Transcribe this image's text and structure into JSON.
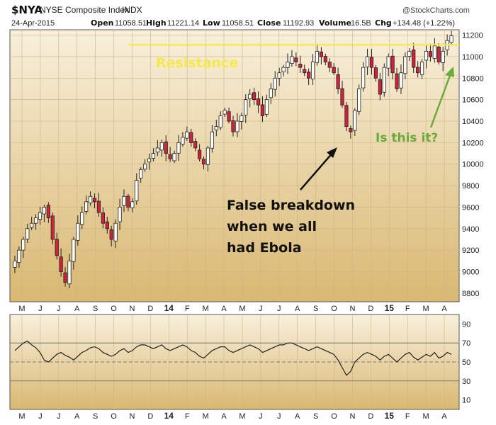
{
  "header": {
    "symbol": "$NYA",
    "name": "NYSE Composite Index",
    "exchange": "INDX",
    "date": "24-Apr-2015",
    "open_label": "Open",
    "open": "11058.51",
    "high_label": "High",
    "high": "11221.14",
    "low_label": "Low",
    "low": "11058.51",
    "close_label": "Close",
    "close": "11192.93",
    "volume_label": "Volume",
    "volume": "16.5B",
    "chg_label": "Chg",
    "chg": "+134.48 (+1.22%)",
    "watermark": "@StockCharts.com"
  },
  "annotations": {
    "resistance": "Resistance",
    "breakdown_line1": "False breakdown",
    "breakdown_line2": "when we all",
    "breakdown_line3": "had Ebola",
    "question": "Is this it?"
  },
  "colors": {
    "up": "#ffffff",
    "down": "#d4213a",
    "resistance": "#f5e94a",
    "question": "#6bab3a",
    "panel_top": "#f8f0dc",
    "panel_bottom": "#d9b871"
  },
  "chart_data": [
    {
      "type": "candlestick",
      "title": "$NYA NYSE Composite Index INDX",
      "y_ticks": [
        8800,
        9000,
        9200,
        9400,
        9600,
        9800,
        10000,
        10200,
        10400,
        10600,
        10800,
        11000,
        11200
      ],
      "ylim": [
        8720,
        11250
      ],
      "x_labels": [
        "M",
        "J",
        "J",
        "A",
        "S",
        "O",
        "N",
        "D",
        "14",
        "F",
        "M",
        "A",
        "M",
        "J",
        "J",
        "A",
        "S",
        "O",
        "N",
        "D",
        "15",
        "F",
        "M",
        "A"
      ],
      "resistance_level": 11110,
      "weekly_closes": [
        9100,
        9200,
        9300,
        9400,
        9450,
        9500,
        9550,
        9600,
        9500,
        9300,
        9150,
        9000,
        8900,
        9100,
        9300,
        9450,
        9550,
        9650,
        9700,
        9650,
        9550,
        9450,
        9400,
        9300,
        9450,
        9600,
        9700,
        9600,
        9650,
        9850,
        9950,
        10000,
        10050,
        10100,
        10150,
        10200,
        10100,
        10050,
        10100,
        10200,
        10250,
        10300,
        10200,
        10150,
        10050,
        10000,
        10150,
        10300,
        10350,
        10450,
        10500,
        10400,
        10300,
        10400,
        10450,
        10600,
        10650,
        10600,
        10550,
        10450,
        10600,
        10700,
        10800,
        10850,
        10900,
        10950,
        11000,
        10950,
        10900,
        10850,
        10800,
        10950,
        11050,
        11000,
        10950,
        10900,
        10850,
        10700,
        10550,
        10350,
        10300,
        10500,
        10700,
        10900,
        11000,
        10900,
        10800,
        10650,
        10900,
        11000,
        10850,
        10700,
        10850,
        11000,
        11050,
        10900,
        10850,
        10950,
        11050,
        11000,
        11100,
        10950,
        11050,
        11150,
        11193
      ],
      "x_order": "chronological, weekly, May 2013 to 24 Apr 2015"
    },
    {
      "type": "line",
      "title": "",
      "y_ticks": [
        10,
        30,
        50,
        70,
        90
      ],
      "ylim": [
        0,
        100
      ],
      "reference_lines": [
        30,
        50,
        70
      ],
      "series": [
        {
          "values": [
            62,
            66,
            70,
            72,
            68,
            65,
            60,
            52,
            50,
            54,
            58,
            60,
            57,
            55,
            52,
            56,
            60,
            62,
            65,
            66,
            64,
            60,
            58,
            56,
            58,
            62,
            64,
            60,
            62,
            66,
            68,
            68,
            66,
            64,
            66,
            68,
            64,
            62,
            64,
            66,
            68,
            66,
            62,
            60,
            56,
            54,
            58,
            62,
            64,
            66,
            66,
            62,
            60,
            62,
            64,
            66,
            68,
            66,
            64,
            60,
            62,
            64,
            66,
            68,
            68,
            70,
            70,
            68,
            66,
            64,
            62,
            64,
            66,
            64,
            62,
            60,
            58,
            52,
            44,
            36,
            40,
            50,
            54,
            58,
            60,
            58,
            56,
            52,
            56,
            58,
            54,
            50,
            54,
            58,
            60,
            55,
            52,
            55,
            58,
            56,
            60,
            54,
            56,
            60,
            58
          ]
        }
      ],
      "x_labels": [
        "M",
        "J",
        "J",
        "A",
        "S",
        "O",
        "N",
        "D",
        "14",
        "F",
        "M",
        "A",
        "M",
        "J",
        "J",
        "A",
        "S",
        "O",
        "N",
        "D",
        "15",
        "F",
        "M",
        "A"
      ]
    }
  ]
}
